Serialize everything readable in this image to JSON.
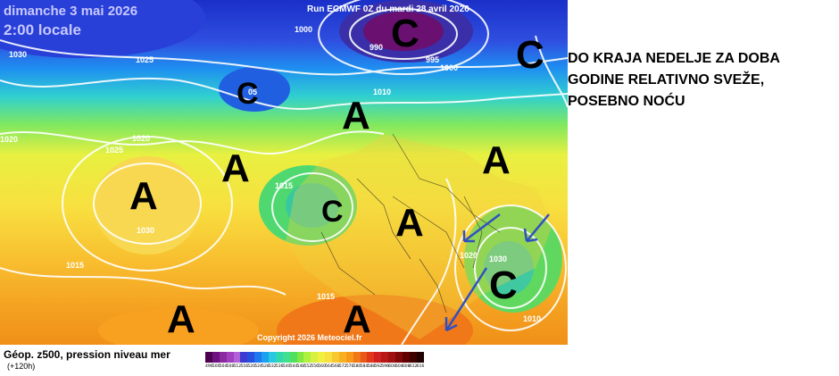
{
  "header": {
    "date": "dimanche 3 mai 2026",
    "time": "2:00 locale",
    "run": "Run ECMWF 0Z du mardi 28 avril 2026"
  },
  "copyright": "Copyright 2026 Meteociel.fr",
  "isobar_labels": [
    "1030",
    "1000",
    "1025",
    "990",
    "995",
    "1000",
    "05",
    "1010",
    "1020",
    "1020",
    "1025",
    "1015",
    "1030",
    "1015",
    "1020",
    "1030",
    "1015",
    "1010"
  ],
  "pressure_centers": [
    "C",
    "C",
    "C",
    "A",
    "A",
    "A",
    "C",
    "A",
    "A",
    "A",
    "C",
    "A",
    "A"
  ],
  "annotation": {
    "line1": "DO KRAJA NEDELJE ZA DOBA",
    "line2": "GODINE RELATIVNO SVEŽE,",
    "line3": "POSEBNO NOĆU"
  },
  "legend": {
    "field_title": "Géop. z500, pression niveau mer",
    "lead_time": "(+120h)",
    "colorbar_labels": [
      "496",
      "500",
      "504",
      "508",
      "512",
      "516",
      "520",
      "524",
      "528",
      "532",
      "536",
      "540",
      "544",
      "548",
      "552",
      "556",
      "560",
      "564",
      "568",
      "572",
      "576",
      "580",
      "584",
      "588",
      "592",
      "596",
      "600",
      "604",
      "608",
      "612",
      "616"
    ],
    "colorbar_colors": [
      "#4b0050",
      "#6e1080",
      "#8a2aa0",
      "#a040c0",
      "#b060d8",
      "#3c3cd0",
      "#2850e0",
      "#1e78f0",
      "#1ea0f0",
      "#28c8e0",
      "#30d8b0",
      "#40e090",
      "#50e060",
      "#80e840",
      "#b0f040",
      "#d8f040",
      "#f0f040",
      "#f8e040",
      "#f8c830",
      "#f8b020",
      "#f89818",
      "#f07818",
      "#e85818",
      "#e03818",
      "#d02020",
      "#b81818",
      "#a01010",
      "#800808",
      "#600000",
      "#400000",
      "#200000"
    ]
  }
}
